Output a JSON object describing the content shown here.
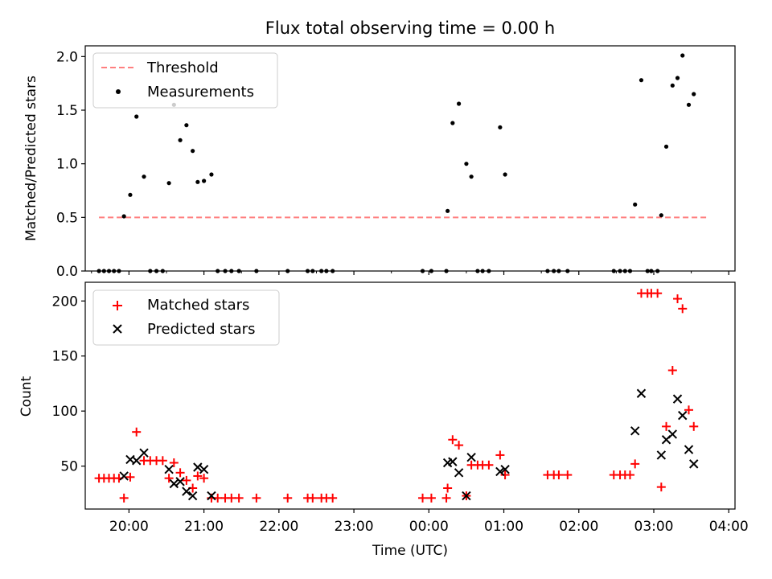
{
  "title": "Flux total observing time = 0.00 h",
  "chart_data": [
    {
      "type": "scatter",
      "ylabel": "Matched/Predicted stars",
      "xlabel": "",
      "xlim": [
        "19:25",
        "04:05"
      ],
      "ylim": [
        0,
        2.1
      ],
      "yticks": [
        0,
        0.5,
        1.0,
        1.5,
        2.0
      ],
      "ytick_labels": [
        "0.0",
        "0.5",
        "1.0",
        "1.5",
        "2.0"
      ],
      "x_major_ticks": [
        "20:00",
        "21:00",
        "22:00",
        "23:00",
        "00:00",
        "01:00",
        "02:00",
        "03:00",
        "04:00"
      ],
      "legend_position": "upper-left",
      "threshold": {
        "name": "Threshold",
        "value": 0.5,
        "x_start": "19:36",
        "x_end": "03:42",
        "color": "#ff7f7f",
        "style": "dashed"
      },
      "series": [
        {
          "name": "Measurements",
          "color": "#000000",
          "marker": "dot",
          "points": [
            [
              "19:36",
              0
            ],
            [
              "19:40",
              0
            ],
            [
              "19:44",
              0
            ],
            [
              "19:48",
              0
            ],
            [
              "19:52",
              0
            ],
            [
              "19:56",
              0.51
            ],
            [
              "20:01",
              0.71
            ],
            [
              "20:06",
              1.44
            ],
            [
              "20:12",
              0.88
            ],
            [
              "20:17",
              0
            ],
            [
              "20:22",
              0
            ],
            [
              "20:27",
              0
            ],
            [
              "20:32",
              0.82
            ],
            [
              "20:36",
              1.55
            ],
            [
              "20:41",
              1.22
            ],
            [
              "20:46",
              1.36
            ],
            [
              "20:51",
              1.12
            ],
            [
              "20:55",
              0.83
            ],
            [
              "21:00",
              0.84
            ],
            [
              "21:06",
              0.9
            ],
            [
              "21:11",
              0
            ],
            [
              "21:17",
              0
            ],
            [
              "21:22",
              0
            ],
            [
              "21:28",
              0
            ],
            [
              "21:42",
              0
            ],
            [
              "22:07",
              0
            ],
            [
              "22:23",
              0
            ],
            [
              "22:27",
              0
            ],
            [
              "22:34",
              0
            ],
            [
              "22:38",
              0
            ],
            [
              "22:43",
              0
            ],
            [
              "23:55",
              0
            ],
            [
              "00:02",
              0
            ],
            [
              "00:14",
              0
            ],
            [
              "00:15",
              0.56
            ],
            [
              "00:19",
              1.38
            ],
            [
              "00:24",
              1.56
            ],
            [
              "00:30",
              1.0
            ],
            [
              "00:34",
              0.88
            ],
            [
              "00:39",
              0
            ],
            [
              "00:43",
              0
            ],
            [
              "00:48",
              0
            ],
            [
              "00:57",
              1.34
            ],
            [
              "01:01",
              0.9
            ],
            [
              "01:35",
              0
            ],
            [
              "01:40",
              0
            ],
            [
              "01:44",
              0
            ],
            [
              "01:51",
              0
            ],
            [
              "02:28",
              0
            ],
            [
              "02:33",
              0
            ],
            [
              "02:37",
              0
            ],
            [
              "02:41",
              0
            ],
            [
              "02:45",
              0.62
            ],
            [
              "02:50",
              1.78
            ],
            [
              "02:55",
              0
            ],
            [
              "02:58",
              0
            ],
            [
              "03:03",
              0
            ],
            [
              "03:06",
              0.52
            ],
            [
              "03:10",
              1.16
            ],
            [
              "03:15",
              1.73
            ],
            [
              "03:19",
              1.8
            ],
            [
              "03:23",
              2.01
            ],
            [
              "03:28",
              1.55
            ],
            [
              "03:32",
              1.65
            ]
          ]
        }
      ]
    },
    {
      "type": "scatter",
      "ylabel": "Count",
      "xlabel": "Time (UTC)",
      "xlim": [
        "19:25",
        "04:05"
      ],
      "ylim": [
        11,
        217
      ],
      "yticks": [
        50,
        100,
        150,
        200
      ],
      "ytick_labels": [
        "50",
        "100",
        "150",
        "200"
      ],
      "x_major_ticks": [
        "20:00",
        "21:00",
        "22:00",
        "23:00",
        "00:00",
        "01:00",
        "02:00",
        "03:00",
        "04:00"
      ],
      "x_tick_labels": [
        "20:00",
        "21:00",
        "22:00",
        "23:00",
        "00:00",
        "01:00",
        "02:00",
        "03:00",
        "04:00"
      ],
      "legend_position": "upper-left",
      "series": [
        {
          "name": "Matched stars",
          "color": "#ff0000",
          "marker": "plus",
          "points": [
            [
              "19:36",
              39
            ],
            [
              "19:40",
              39
            ],
            [
              "19:44",
              39
            ],
            [
              "19:48",
              39
            ],
            [
              "19:52",
              39
            ],
            [
              "19:56",
              21
            ],
            [
              "20:01",
              40
            ],
            [
              "20:06",
              81
            ],
            [
              "20:12",
              55
            ],
            [
              "20:17",
              55
            ],
            [
              "20:22",
              55
            ],
            [
              "20:27",
              55
            ],
            [
              "20:32",
              39
            ],
            [
              "20:36",
              53
            ],
            [
              "20:41",
              44
            ],
            [
              "20:46",
              37
            ],
            [
              "20:51",
              30
            ],
            [
              "20:55",
              41
            ],
            [
              "21:00",
              39
            ],
            [
              "21:06",
              21
            ],
            [
              "21:11",
              21
            ],
            [
              "21:17",
              21
            ],
            [
              "21:22",
              21
            ],
            [
              "21:28",
              21
            ],
            [
              "21:42",
              21
            ],
            [
              "22:07",
              21
            ],
            [
              "22:23",
              21
            ],
            [
              "22:27",
              21
            ],
            [
              "22:34",
              21
            ],
            [
              "22:38",
              21
            ],
            [
              "22:43",
              21
            ],
            [
              "23:55",
              21
            ],
            [
              "00:02",
              21
            ],
            [
              "00:14",
              21
            ],
            [
              "00:15",
              30
            ],
            [
              "00:19",
              74
            ],
            [
              "00:24",
              69
            ],
            [
              "00:30",
              23
            ],
            [
              "00:34",
              51
            ],
            [
              "00:39",
              51
            ],
            [
              "00:43",
              51
            ],
            [
              "00:48",
              51
            ],
            [
              "00:57",
              60
            ],
            [
              "01:01",
              42
            ],
            [
              "01:35",
              42
            ],
            [
              "01:40",
              42
            ],
            [
              "01:44",
              42
            ],
            [
              "01:51",
              42
            ],
            [
              "02:28",
              42
            ],
            [
              "02:33",
              42
            ],
            [
              "02:37",
              42
            ],
            [
              "02:41",
              42
            ],
            [
              "02:45",
              52
            ],
            [
              "02:50",
              207
            ],
            [
              "02:55",
              207
            ],
            [
              "02:58",
              207
            ],
            [
              "03:03",
              207
            ],
            [
              "03:06",
              31
            ],
            [
              "03:10",
              86
            ],
            [
              "03:15",
              137
            ],
            [
              "03:19",
              202
            ],
            [
              "03:23",
              193
            ],
            [
              "03:28",
              101
            ],
            [
              "03:32",
              86
            ]
          ]
        },
        {
          "name": "Predicted stars",
          "color": "#000000",
          "marker": "x",
          "points": [
            [
              "19:56",
              41
            ],
            [
              "20:01",
              56
            ],
            [
              "20:06",
              55
            ],
            [
              "20:12",
              62
            ],
            [
              "20:32",
              47
            ],
            [
              "20:36",
              34
            ],
            [
              "20:41",
              36
            ],
            [
              "20:46",
              27
            ],
            [
              "20:51",
              23
            ],
            [
              "20:55",
              49
            ],
            [
              "21:00",
              47
            ],
            [
              "21:06",
              23
            ],
            [
              "00:15",
              53
            ],
            [
              "00:19",
              54
            ],
            [
              "00:24",
              44
            ],
            [
              "00:30",
              23
            ],
            [
              "00:34",
              58
            ],
            [
              "00:57",
              45
            ],
            [
              "01:01",
              47
            ],
            [
              "02:45",
              82
            ],
            [
              "02:50",
              116
            ],
            [
              "03:06",
              60
            ],
            [
              "03:10",
              74
            ],
            [
              "03:15",
              79
            ],
            [
              "03:19",
              111
            ],
            [
              "03:23",
              96
            ],
            [
              "03:28",
              65
            ],
            [
              "03:32",
              52
            ]
          ]
        }
      ]
    }
  ]
}
